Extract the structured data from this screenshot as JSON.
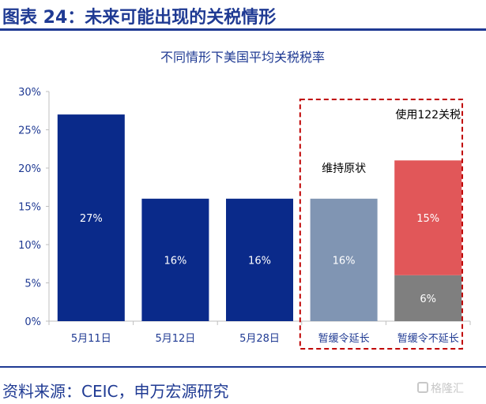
{
  "figure": {
    "header": "图表 24：未来可能出现的关税情形",
    "source": "资料来源：CEIC，申万宏源研究",
    "watermark": "格隆汇"
  },
  "colors": {
    "brand_blue": "#1f3a93",
    "bar_navy": "#0a2a8a",
    "bar_steel": "#8095b3",
    "bar_red": "#e15759",
    "bar_gray": "#7f7f7f",
    "highlight_box": "#c00000"
  },
  "chart_data": {
    "type": "bar",
    "stacked": true,
    "title": "不同情形下美国平均关税税率",
    "xlabel": "",
    "ylabel": "",
    "ylim": [
      0,
      30
    ],
    "yticks": [
      "0%",
      "5%",
      "10%",
      "15%",
      "20%",
      "25%",
      "30%"
    ],
    "yticks_values": [
      0,
      5,
      10,
      15,
      20,
      25,
      30
    ],
    "grid": false,
    "categories": [
      "5月11日",
      "5月12日",
      "5月28日",
      "暂缓令延长",
      "暂缓令不延长"
    ],
    "segments": [
      {
        "category": "5月11日",
        "value": 27,
        "base": 0,
        "label": "27%",
        "color": "#0a2a8a"
      },
      {
        "category": "5月12日",
        "value": 16,
        "base": 0,
        "label": "16%",
        "color": "#0a2a8a"
      },
      {
        "category": "5月28日",
        "value": 16,
        "base": 0,
        "label": "16%",
        "color": "#0a2a8a"
      },
      {
        "category": "暂缓令延长",
        "value": 16,
        "base": 0,
        "label": "16%",
        "color": "#8095b3"
      },
      {
        "category": "暂缓令不延长",
        "value": 6,
        "base": 0,
        "label": "6%",
        "color": "#7f7f7f"
      },
      {
        "category": "暂缓令不延长",
        "value": 15,
        "base": 6,
        "label": "15%",
        "color": "#e15759"
      }
    ],
    "annotations": [
      {
        "text": "维持原状",
        "category": "暂缓令延长",
        "at_value": 20
      },
      {
        "text": "使用122关税",
        "category": "暂缓令不延长",
        "at_value": 27
      }
    ],
    "highlight": {
      "from_category": "暂缓令延长",
      "to_category": "暂缓令不延长",
      "style": "dashed"
    }
  }
}
